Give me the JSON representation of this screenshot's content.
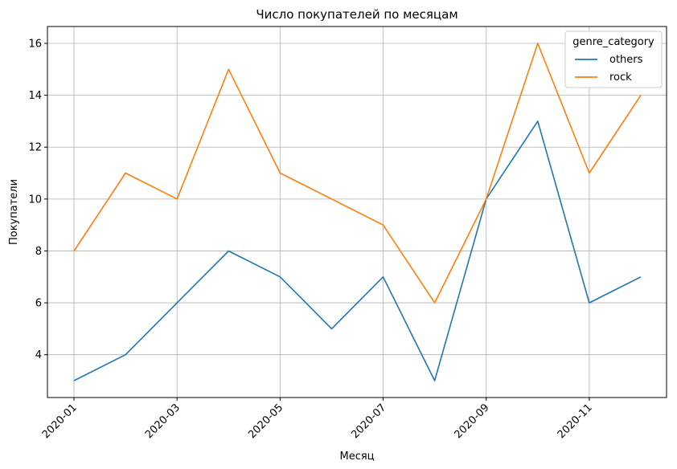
{
  "chart_data": {
    "type": "line",
    "title": "Число покупателей по месяцам",
    "xlabel": "Месяц",
    "ylabel": "Покупатели",
    "x": [
      "2020-01",
      "2020-02",
      "2020-03",
      "2020-04",
      "2020-05",
      "2020-06",
      "2020-07",
      "2020-08",
      "2020-09",
      "2020-10",
      "2020-11",
      "2020-12"
    ],
    "xticks": [
      "2020-01",
      "2020-03",
      "2020-05",
      "2020-07",
      "2020-09",
      "2020-11"
    ],
    "yticks": [
      4,
      6,
      8,
      10,
      12,
      14,
      16
    ],
    "ylim": [
      2.35,
      16.65
    ],
    "grid": true,
    "legend": {
      "title": "genre_category",
      "placement": "top-right"
    },
    "series": [
      {
        "name": "others",
        "color": "#1f77b4",
        "values": [
          3,
          4,
          6,
          8,
          7,
          5,
          7,
          3,
          10,
          13,
          6,
          7
        ]
      },
      {
        "name": "rock",
        "color": "#ff7f0e",
        "values": [
          8,
          11,
          10,
          15,
          11,
          10,
          9,
          6,
          10,
          16,
          11,
          14
        ]
      }
    ]
  }
}
